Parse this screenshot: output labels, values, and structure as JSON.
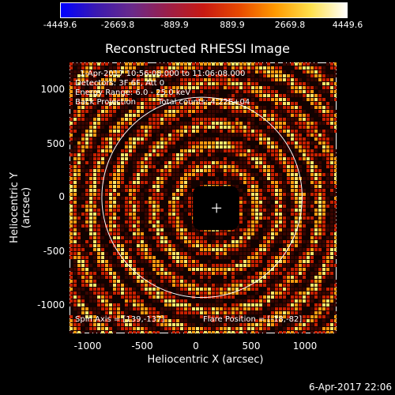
{
  "colorbar": {
    "ticks": [
      "-4449.6",
      "-2669.8",
      "-889.9",
      "889.9",
      "2669.8",
      "4449.6"
    ],
    "gradient_colors": [
      "#0000ff",
      "#3b1ab0",
      "#6a2a8a",
      "#9c1f48",
      "#c81a12",
      "#e84a00",
      "#ff9a00",
      "#ffe14d",
      "#ffffff"
    ]
  },
  "title": "Reconstructed RHESSI Image",
  "info": {
    "time_range": "1-Apr-2017 10:56:08.000 to 11:06:08.000",
    "detectors": "Detectors: 3F 6F, Att 0",
    "energy": "Energy Range: 6.0 - 25.0 keV",
    "method": "Back Projection",
    "total_counts": "Total counts: 4.22E+04",
    "spin_axis": "Spin Axis = [139,-137]",
    "flare_position": "Flare Position = [-18,-82]"
  },
  "axes": {
    "xlabel": "Heliocentric X (arcsec)",
    "ylabel": "Heliocentric Y (arcsec)",
    "xticks": [
      "-1000",
      "-500",
      "0",
      "500",
      "1000"
    ],
    "yticks": [
      "1000",
      "500",
      "0",
      "-500",
      "-1000"
    ],
    "xlim": [
      -1270,
      1290
    ],
    "ylim": [
      -1270,
      1260
    ]
  },
  "plot": {
    "sun_circle_center": [
      0,
      0
    ],
    "sun_circle_radius_arcsec": 960,
    "crosshair_center": [
      140,
      -100
    ],
    "pattern_center": [
      140,
      -100
    ]
  },
  "footer_date": "6-Apr-2017 22:06",
  "colors": {
    "background": "#000000",
    "foreground": "#ffffff",
    "speckle_dark": "#3a0500",
    "speckle_mid": "#c82000",
    "speckle_bright": "#ff9a10",
    "speckle_max": "#ffe66a"
  }
}
